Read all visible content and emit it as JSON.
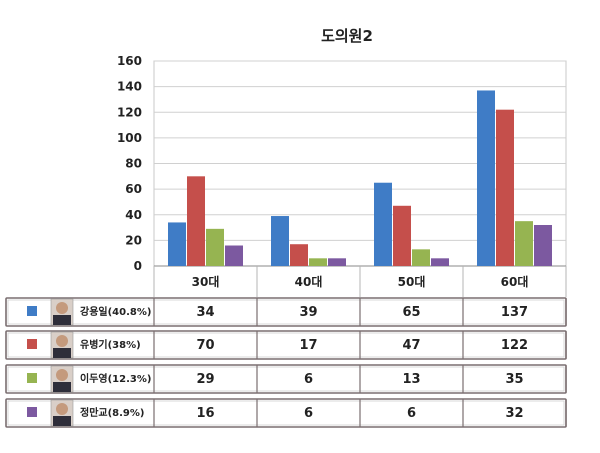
{
  "chart_data": {
    "type": "bar",
    "title": "도의원2",
    "categories": [
      "30대",
      "40대",
      "50대",
      "60대"
    ],
    "ylim": [
      0,
      160
    ],
    "yticks": [
      0,
      20,
      40,
      60,
      80,
      100,
      120,
      140,
      160
    ],
    "grid": true,
    "legend": "bottom-left table",
    "series": [
      {
        "name": "강용일(40.8%)",
        "color": "#3f7cc6",
        "values": [
          34,
          39,
          65,
          137
        ]
      },
      {
        "name": "유병기(38%)",
        "color": "#c54f4b",
        "values": [
          70,
          17,
          47,
          122
        ]
      },
      {
        "name": "이두영(12.3%)",
        "color": "#96b451",
        "values": [
          29,
          6,
          13,
          35
        ]
      },
      {
        "name": "정만교(8.9%)",
        "color": "#7c59a0",
        "values": [
          16,
          6,
          6,
          32
        ]
      }
    ]
  }
}
